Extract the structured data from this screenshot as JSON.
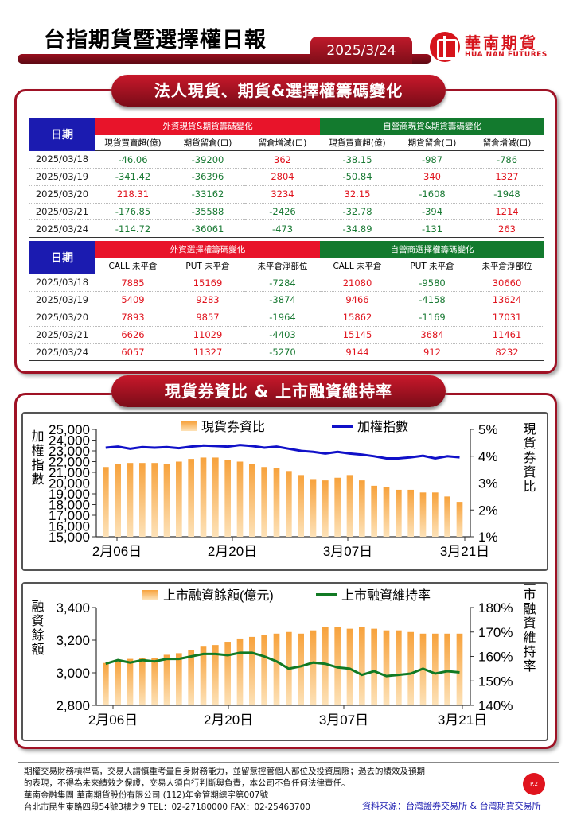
{
  "header": {
    "title": "台指期貨暨選擇權日報",
    "date": "2025/3/24",
    "logo_cn": "華南期貨",
    "logo_en": "HUA NAN FUTURES"
  },
  "section1": {
    "title": "法人現貨、期貨&選擇權籌碼變化",
    "futures_table": {
      "date_header": "日期",
      "group_foreign": "外資現貨&期貨籌碼變化",
      "group_dealer": "自營商現貨&期貨籌碼變化",
      "columns": [
        "現貨買賣超(億)",
        "期貨留倉(口)",
        "留倉增減(口)",
        "現貨買賣超(億)",
        "期貨留倉(口)",
        "留倉增減(口)"
      ],
      "rows": [
        {
          "date": "2025/03/18",
          "values": [
            "-46.06",
            "-39200",
            "362",
            "-38.15",
            "-987",
            "-786"
          ]
        },
        {
          "date": "2025/03/19",
          "values": [
            "-341.42",
            "-36396",
            "2804",
            "-50.84",
            "340",
            "1327"
          ]
        },
        {
          "date": "2025/03/20",
          "values": [
            "218.31",
            "-33162",
            "3234",
            "32.15",
            "-1608",
            "-1948"
          ]
        },
        {
          "date": "2025/03/21",
          "values": [
            "-176.85",
            "-35588",
            "-2426",
            "-32.78",
            "-394",
            "1214"
          ]
        },
        {
          "date": "2025/03/24",
          "values": [
            "-114.72",
            "-36061",
            "-473",
            "-34.89",
            "-131",
            "263"
          ]
        }
      ]
    },
    "options_table": {
      "date_header": "日期",
      "group_foreign": "外資選擇權籌碼變化",
      "group_dealer": "自營商選擇權籌碼變化",
      "columns": [
        "CALL 未平倉",
        "PUT 未平倉",
        "未平倉淨部位",
        "CALL 未平倉",
        "PUT 未平倉",
        "未平倉淨部位"
      ],
      "rows": [
        {
          "date": "2025/03/18",
          "values": [
            "7885",
            "15169",
            "-7284",
            "21080",
            "-9580",
            "30660"
          ]
        },
        {
          "date": "2025/03/19",
          "values": [
            "5409",
            "9283",
            "-3874",
            "9466",
            "-4158",
            "13624"
          ]
        },
        {
          "date": "2025/03/20",
          "values": [
            "7893",
            "9857",
            "-1964",
            "15862",
            "-1169",
            "17031"
          ]
        },
        {
          "date": "2025/03/21",
          "values": [
            "6626",
            "11029",
            "-4403",
            "15145",
            "3684",
            "11461"
          ]
        },
        {
          "date": "2025/03/24",
          "values": [
            "6057",
            "11327",
            "-5270",
            "9144",
            "912",
            "8232"
          ]
        }
      ]
    }
  },
  "section2": {
    "title": "現貨券資比 & 上市融資維持率",
    "chart1": {
      "legend_bar": "現貨券資比",
      "legend_line": "加權指數",
      "ylabel_left": "加權指數",
      "ylabel_right": "現貨券資比",
      "x_ticks": [
        "2月06日",
        "2月20日",
        "3月07日",
        "3月21日"
      ],
      "y_left_ticks": [
        "25,000",
        "24,000",
        "23,000",
        "22,000",
        "21,000",
        "20,000",
        "19,000",
        "18,000",
        "17,000",
        "16,000",
        "15,000"
      ],
      "y_right_ticks": [
        "5%",
        "4%",
        "3%",
        "2%",
        "1%"
      ]
    },
    "chart2": {
      "legend_bar": "上市融資餘額(億元)",
      "legend_line": "上市融資維持率",
      "ylabel_left": "融資餘額",
      "ylabel_right": "上市融資維持率",
      "x_ticks": [
        "2月06日",
        "2月20日",
        "3月07日",
        "3月21日"
      ],
      "y_left_ticks": [
        "3,400",
        "3,200",
        "3,000",
        "2,800"
      ],
      "y_right_ticks": [
        "180%",
        "170%",
        "160%",
        "150%",
        "140%"
      ]
    }
  },
  "chart_data": [
    {
      "type": "bar",
      "x_range": [
        "2月06日",
        "3月24日"
      ],
      "series": [
        {
          "name": "現貨券資比",
          "axis": "right",
          "values": [
            3.6,
            3.7,
            3.75,
            3.75,
            3.75,
            3.7,
            3.8,
            3.9,
            3.95,
            3.95,
            3.85,
            3.8,
            3.7,
            3.6,
            3.55,
            3.45,
            3.3,
            3.15,
            3.1,
            3.2,
            3.3,
            3.1,
            2.9,
            2.85,
            2.75,
            2.75,
            2.65,
            2.65,
            2.5,
            2.3
          ]
        },
        {
          "name": "加權指數",
          "axis": "left",
          "type": "line",
          "values": [
            23300,
            23400,
            23200,
            23350,
            23300,
            23350,
            23250,
            23400,
            23500,
            23450,
            23400,
            23550,
            23450,
            23300,
            23400,
            23200,
            23000,
            22900,
            22750,
            22900,
            22750,
            22650,
            22500,
            22300,
            22300,
            22400,
            22550,
            22300,
            22500,
            22400
          ]
        }
      ],
      "ylim_left": [
        15000,
        25000
      ],
      "ylim_right": [
        1,
        5
      ]
    },
    {
      "type": "bar",
      "x_range": [
        "2月06日",
        "3月24日"
      ],
      "series": [
        {
          "name": "上市融資餘額(億元)",
          "axis": "left",
          "values": [
            3060,
            3070,
            3085,
            3090,
            3090,
            3110,
            3120,
            3140,
            3160,
            3170,
            3190,
            3210,
            3220,
            3230,
            3240,
            3250,
            3240,
            3260,
            3280,
            3280,
            3270,
            3280,
            3270,
            3260,
            3260,
            3250,
            3240,
            3240,
            3240,
            3240
          ]
        },
        {
          "name": "上市融資維持率",
          "axis": "right",
          "type": "line",
          "values": [
            157,
            158.5,
            157.5,
            158.5,
            158,
            159,
            159,
            160,
            161,
            161,
            160.5,
            161.5,
            161.5,
            160,
            158,
            155,
            156,
            157.5,
            157,
            155.5,
            155,
            152.5,
            154,
            152,
            152.5,
            153,
            155,
            153,
            154,
            153.5
          ]
        }
      ],
      "ylim_left": [
        2800,
        3400
      ],
      "ylim_right": [
        140,
        180
      ]
    }
  ],
  "footer": {
    "line1": "期權交易財務槓桿高，交易人請慎重考量自身財務能力，並留意控管個人部位及投資風險；過去的績效及預期",
    "line2": "的表現，不得為未來績效之保證，交易人須自行判斷與負責，本公司不負任何法律責任。",
    "line3": "華南金融集團 華南期貨股份有限公司 (112)年金管期總字第007號",
    "line4": "台北市民生東路四段54號3樓之9  TEL：02-27180000  FAX：02-25463700",
    "page": "P.2",
    "source": "資料來源：台灣證券交易所 & 台灣期貨交易所"
  },
  "colors": {
    "brand_red": "#9f1225",
    "pos": "#e0141e",
    "neg": "#1a7a34",
    "bar": "#f3a64a",
    "line1": "#1010c8",
    "line2": "#127a24"
  }
}
